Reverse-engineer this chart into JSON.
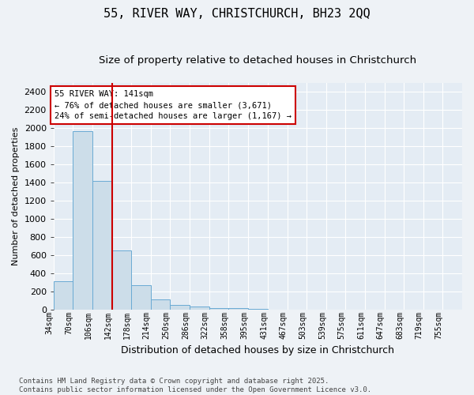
{
  "title_line1": "55, RIVER WAY, CHRISTCHURCH, BH23 2QQ",
  "title_line2": "Size of property relative to detached houses in Christchurch",
  "xlabel": "Distribution of detached houses by size in Christchurch",
  "ylabel": "Number of detached properties",
  "annotation_line1": "55 RIVER WAY: 141sqm",
  "annotation_line2": "← 76% of detached houses are smaller (3,671)",
  "annotation_line3": "24% of semi-detached houses are larger (1,167) →",
  "footer_line1": "Contains HM Land Registry data © Crown copyright and database right 2025.",
  "footer_line2": "Contains public sector information licensed under the Open Government Licence v3.0.",
  "bar_color": "#ccdde9",
  "bar_edge_color": "#6aaad4",
  "red_line_x": 142,
  "annotation_box_color": "#cc0000",
  "categories": [
    "34sqm",
    "70sqm",
    "106sqm",
    "142sqm",
    "178sqm",
    "214sqm",
    "250sqm",
    "286sqm",
    "322sqm",
    "358sqm",
    "395sqm",
    "431sqm",
    "467sqm",
    "503sqm",
    "539sqm",
    "575sqm",
    "611sqm",
    "647sqm",
    "683sqm",
    "719sqm",
    "755sqm"
  ],
  "bin_left_edges": [
    34,
    70,
    106,
    142,
    178,
    214,
    250,
    286,
    322,
    358,
    395,
    431,
    467,
    503,
    539,
    575,
    611,
    647,
    683,
    719,
    755
  ],
  "bin_width": 36,
  "values": [
    310,
    1970,
    1420,
    650,
    270,
    110,
    50,
    38,
    22,
    16,
    9,
    0,
    0,
    0,
    0,
    0,
    0,
    0,
    0,
    0,
    0
  ],
  "ylim": [
    0,
    2500
  ],
  "yticks": [
    0,
    200,
    400,
    600,
    800,
    1000,
    1200,
    1400,
    1600,
    1800,
    2000,
    2200,
    2400
  ],
  "background_color": "#eef2f6",
  "plot_bg_color": "#e4ecf4",
  "grid_color": "#ffffff",
  "title_fontsize": 11,
  "subtitle_fontsize": 9.5,
  "ylabel_fontsize": 8,
  "xlabel_fontsize": 9,
  "ytick_fontsize": 8,
  "xtick_fontsize": 7
}
